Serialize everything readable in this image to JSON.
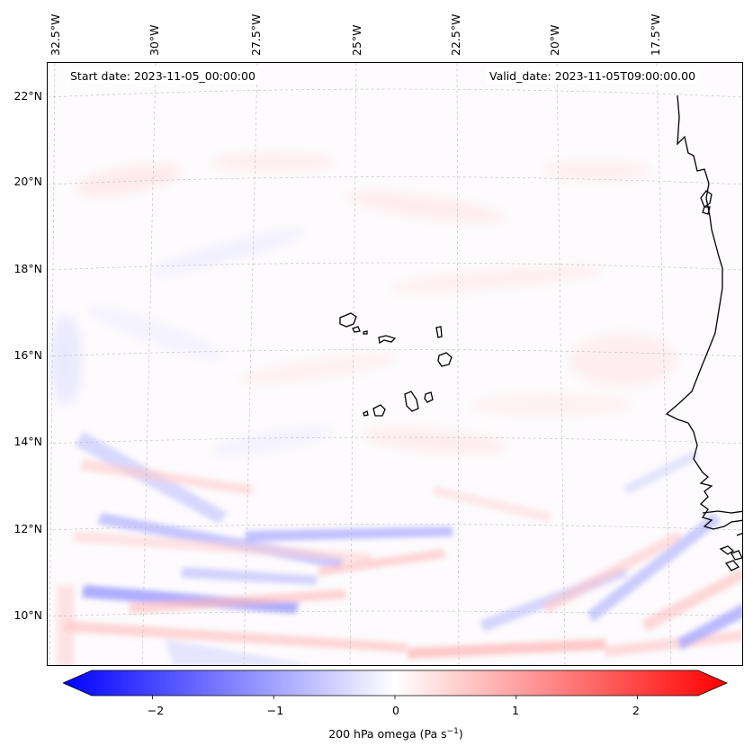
{
  "map": {
    "title_start": "Start date: 2023-11-05_00:00:00",
    "title_valid": "Valid_date: 2023-11-05T09:00:00.00",
    "field": "200 hPa omega",
    "lon_labels": [
      "32.5°W",
      "30°W",
      "27.5°W",
      "25°W",
      "22.5°W",
      "20°W",
      "17.5°W"
    ],
    "lat_labels": [
      "22°N",
      "20°N",
      "18°N",
      "16°N",
      "14°N",
      "12°N",
      "10°N"
    ],
    "coastline_color": "#000000",
    "grid_color": "#bbbbbb"
  },
  "colorbar": {
    "ticks": [
      "−2",
      "−1",
      "0",
      "1",
      "2"
    ],
    "tick_values": [
      -2,
      -1,
      0,
      1,
      2
    ],
    "range": [
      -2.5,
      2.5
    ],
    "label_text": "200 hPa omega (Pa s",
    "label_sup": "−1",
    "label_close": ")",
    "min_color": "#0000ff",
    "mid_color": "#ffffff",
    "max_color": "#ff0000"
  }
}
